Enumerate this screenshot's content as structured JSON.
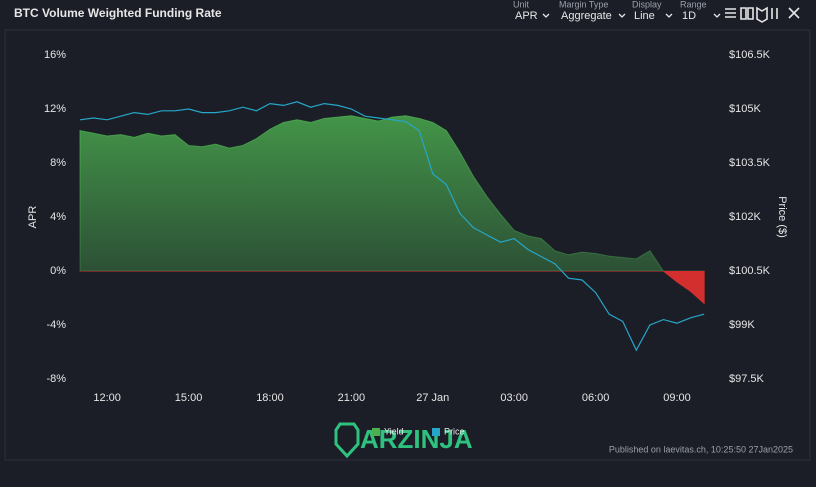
{
  "header": {
    "title": "BTC Volume Weighted Funding Rate",
    "controls": [
      {
        "label": "Unit",
        "value": "APR"
      },
      {
        "label": "Margin Type",
        "value": "Aggregate"
      },
      {
        "label": "Display",
        "value": "Line"
      },
      {
        "label": "Range",
        "value": "1D"
      }
    ]
  },
  "chart_data": {
    "type": "area-line",
    "y_label": "APR",
    "y2_label": "Price ($)",
    "x": [
      11,
      11.5,
      12,
      12.5,
      13,
      13.5,
      14,
      14.5,
      15,
      15.5,
      16,
      16.5,
      17,
      17.5,
      18,
      18.5,
      19,
      19.5,
      20,
      20.5,
      21,
      21.5,
      22,
      22.5,
      23,
      23.5,
      24,
      24.5,
      25,
      25.5,
      26,
      26.5,
      27,
      27.5,
      28,
      28.5,
      29,
      29.5,
      30,
      30.5,
      31,
      31.5,
      32,
      32.5,
      33,
      33.5,
      34
    ],
    "xlim": [
      11,
      34.4
    ],
    "xticks": [
      {
        "value": 12,
        "label": "12:00"
      },
      {
        "value": 15,
        "label": "15:00"
      },
      {
        "value": 18,
        "label": "18:00"
      },
      {
        "value": 21,
        "label": "21:00"
      },
      {
        "value": 24,
        "label": "27 Jan"
      },
      {
        "value": 27,
        "label": "03:00"
      },
      {
        "value": 30,
        "label": "06:00"
      },
      {
        "value": 33,
        "label": "09:00"
      }
    ],
    "ylim": [
      -8,
      16
    ],
    "yticks": [
      {
        "value": -8,
        "label": "-8%"
      },
      {
        "value": -4,
        "label": "-4%"
      },
      {
        "value": 0,
        "label": "0%"
      },
      {
        "value": 4,
        "label": "4%"
      },
      {
        "value": 8,
        "label": "8%"
      },
      {
        "value": 12,
        "label": "12%"
      },
      {
        "value": 16,
        "label": "16%"
      }
    ],
    "y2lim": [
      97500,
      106500
    ],
    "y2ticks": [
      {
        "value": 97500,
        "label": "$97.5K"
      },
      {
        "value": 99000,
        "label": "$99K"
      },
      {
        "value": 100500,
        "label": "$100.5K"
      },
      {
        "value": 102000,
        "label": "$102K"
      },
      {
        "value": 103500,
        "label": "$103.5K"
      },
      {
        "value": 105000,
        "label": "$105K"
      },
      {
        "value": 106500,
        "label": "$106.5K"
      }
    ],
    "grid": false,
    "series": [
      {
        "name": "Yield",
        "color": "#4caf50",
        "negative_color": "#d32f2f",
        "values": [
          10.4,
          10.2,
          10.0,
          10.1,
          9.9,
          10.2,
          10.0,
          10.1,
          9.3,
          9.2,
          9.4,
          9.1,
          9.3,
          9.8,
          10.5,
          11.0,
          11.2,
          11.0,
          11.3,
          11.4,
          11.5,
          11.3,
          11.1,
          11.4,
          11.5,
          11.3,
          11.0,
          10.4,
          8.8,
          7.0,
          5.5,
          4.2,
          3.0,
          2.6,
          2.4,
          1.5,
          1.2,
          1.4,
          1.3,
          1.1,
          1.0,
          0.9,
          1.5,
          0.0,
          -0.8,
          -1.5,
          -2.4
        ]
      },
      {
        "name": "Price",
        "color": "#26a6c8",
        "axis": "y2",
        "values": [
          104700,
          104750,
          104700,
          104800,
          104900,
          104850,
          104950,
          104950,
          105000,
          104900,
          104900,
          104950,
          105050,
          104950,
          105150,
          105100,
          105200,
          105050,
          105150,
          105100,
          105000,
          104800,
          104750,
          104700,
          104650,
          104400,
          103200,
          102900,
          102100,
          101700,
          101500,
          101300,
          101400,
          101100,
          100900,
          100700,
          100300,
          100250,
          99900,
          99300,
          99100,
          98300,
          99000,
          99150,
          99050,
          99200,
          99300
        ]
      }
    ]
  },
  "watermark": "ARZINJA",
  "footer": "Published on laevitas.ch, 10:25:50 27Jan2025"
}
